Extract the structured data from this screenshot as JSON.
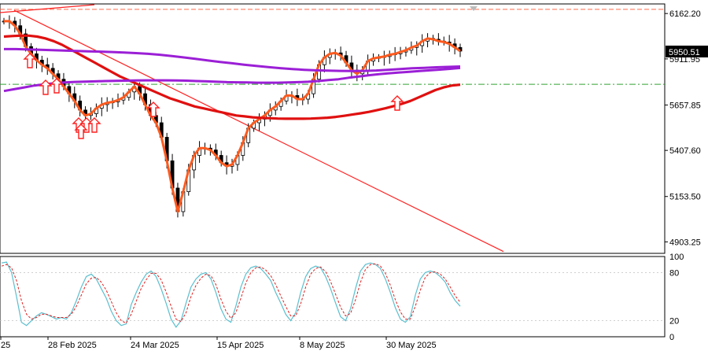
{
  "colors": {
    "background": "#ffffff",
    "frame": "#000000",
    "candle": "#000000",
    "close_line": "#ff5a1e",
    "ma_red": "#e01010",
    "ma_purple": "#9b1fd6",
    "trendline": "#ff2020",
    "resistance_level": "#ff6a4a",
    "support_level": "#30a030",
    "arrow": "#ff2020",
    "stoch_main": "#5bbfcf",
    "stoch_signal": "#e02020",
    "badge_bg": "#000000"
  },
  "chart_data": [
    {
      "type": "candlestick",
      "title": "",
      "x_labels": [
        "25",
        "28 Feb 2025",
        "24 Mar 2025",
        "15 Apr 2025",
        "8 May 2025",
        "30 May 2025"
      ],
      "y_ticks": [
        "6162.20",
        "5911.95",
        "5657.85",
        "5407.60",
        "5153.50",
        "4903.25"
      ],
      "y_tick_values": [
        6162.2,
        5911.95,
        5657.85,
        5407.6,
        5153.5,
        4903.25
      ],
      "ylim": [
        4840,
        6215
      ],
      "current_price": "5950.51",
      "current_price_value": 5950.51,
      "levels": [
        {
          "name": "resistance",
          "value": 6185,
          "style": "dashed"
        },
        {
          "name": "support",
          "value": 5772,
          "style": "dash-dot"
        }
      ],
      "close_series": [
        6120,
        6120,
        6095,
        6050,
        5980,
        5940,
        5905,
        5880,
        5860,
        5830,
        5800,
        5760,
        5720,
        5680,
        5630,
        5600,
        5610,
        5640,
        5660,
        5670,
        5675,
        5685,
        5700,
        5730,
        5760,
        5720,
        5660,
        5600,
        5560,
        5480,
        5350,
        5200,
        5070,
        5180,
        5300,
        5380,
        5420,
        5420,
        5410,
        5380,
        5340,
        5320,
        5330,
        5380,
        5450,
        5530,
        5560,
        5580,
        5600,
        5630,
        5650,
        5680,
        5710,
        5710,
        5690,
        5690,
        5720,
        5800,
        5880,
        5920,
        5940,
        5945,
        5930,
        5890,
        5850,
        5830,
        5850,
        5900,
        5915,
        5920,
        5925,
        5935,
        5940,
        5950,
        5960,
        5975,
        5985,
        6010,
        6025,
        6020,
        6010,
        6005,
        5995,
        5975,
        5955
      ],
      "ma_red": [
        6035,
        6038,
        6040,
        6040,
        6035,
        6025,
        6010,
        5990,
        5965,
        5940,
        5915,
        5890,
        5865,
        5840,
        5815,
        5795,
        5775,
        5755,
        5735,
        5715,
        5695,
        5680,
        5665,
        5650,
        5640,
        5630,
        5620,
        5610,
        5600,
        5595,
        5590,
        5587,
        5585,
        5583,
        5582,
        5582,
        5582,
        5583,
        5585,
        5588,
        5592,
        5598,
        5605,
        5612,
        5620,
        5630,
        5640,
        5652,
        5665,
        5680,
        5700,
        5720,
        5740,
        5755,
        5765,
        5770
      ],
      "ma_purple": [
        5735,
        5745,
        5755,
        5765,
        5772,
        5778,
        5782,
        5785,
        5787,
        5788,
        5790,
        5791,
        5792,
        5793,
        5794,
        5794,
        5794,
        5793,
        5792,
        5790,
        5788,
        5786,
        5784,
        5783,
        5782,
        5781,
        5781,
        5781,
        5782,
        5784,
        5786,
        5790,
        5795,
        5800,
        5808,
        5815,
        5822,
        5828,
        5833,
        5837,
        5841,
        5845,
        5849,
        5853,
        5857,
        5862
      ],
      "ma_purple_flat": [
        5966,
        5966,
        5964,
        5962,
        5960,
        5958,
        5956,
        5954,
        5952,
        5950,
        5947,
        5944,
        5940,
        5935,
        5928,
        5920,
        5912,
        5903,
        5895,
        5888,
        5880,
        5873,
        5867,
        5861,
        5856,
        5852,
        5849,
        5847,
        5846,
        5845,
        5846,
        5848,
        5852,
        5856,
        5860,
        5863,
        5866,
        5868,
        5870
      ],
      "trendline": {
        "from": [
          0,
          6180
        ],
        "to": [
          1,
          4850
        ]
      },
      "arrow_signals": [
        4,
        13,
        16,
        22,
        23,
        26,
        27,
        45,
        134
      ],
      "stochastic": {
        "ylim": [
          0,
          100
        ],
        "y_ticks": [
          "100",
          "80",
          "20",
          "0"
        ],
        "y_tick_values": [
          100,
          80,
          20,
          0
        ],
        "main": [
          92,
          93,
          80,
          50,
          18,
          14,
          20,
          26,
          30,
          28,
          25,
          22,
          24,
          22,
          30,
          45,
          62,
          75,
          78,
          72,
          60,
          48,
          32,
          20,
          14,
          16,
          40,
          55,
          68,
          78,
          82,
          75,
          60,
          42,
          22,
          12,
          20,
          42,
          62,
          72,
          78,
          80,
          72,
          55,
          35,
          22,
          18,
          38,
          62,
          78,
          86,
          88,
          85,
          78,
          70,
          55,
          42,
          28,
          20,
          30,
          55,
          75,
          85,
          88,
          86,
          75,
          60,
          42,
          25,
          20,
          35,
          60,
          82,
          90,
          92,
          90,
          85,
          72,
          55,
          36,
          22,
          18,
          25,
          52,
          72,
          80,
          82,
          80,
          75,
          68,
          55,
          45,
          38
        ],
        "signal": [
          88,
          90,
          86,
          70,
          45,
          28,
          22,
          24,
          28,
          28,
          26,
          24,
          24,
          24,
          28,
          38,
          52,
          66,
          73,
          74,
          68,
          58,
          44,
          30,
          20,
          17,
          28,
          44,
          60,
          71,
          79,
          79,
          71,
          56,
          38,
          22,
          19,
          30,
          50,
          64,
          73,
          78,
          76,
          65,
          47,
          32,
          23,
          30,
          48,
          67,
          80,
          86,
          87,
          83,
          76,
          65,
          51,
          38,
          26,
          26,
          41,
          62,
          78,
          85,
          87,
          81,
          69,
          53,
          37,
          26,
          29,
          46,
          68,
          84,
          90,
          91,
          88,
          79,
          64,
          46,
          31,
          22,
          22,
          38,
          58,
          74,
          80,
          81,
          78,
          72,
          62,
          51,
          43
        ]
      }
    }
  ]
}
